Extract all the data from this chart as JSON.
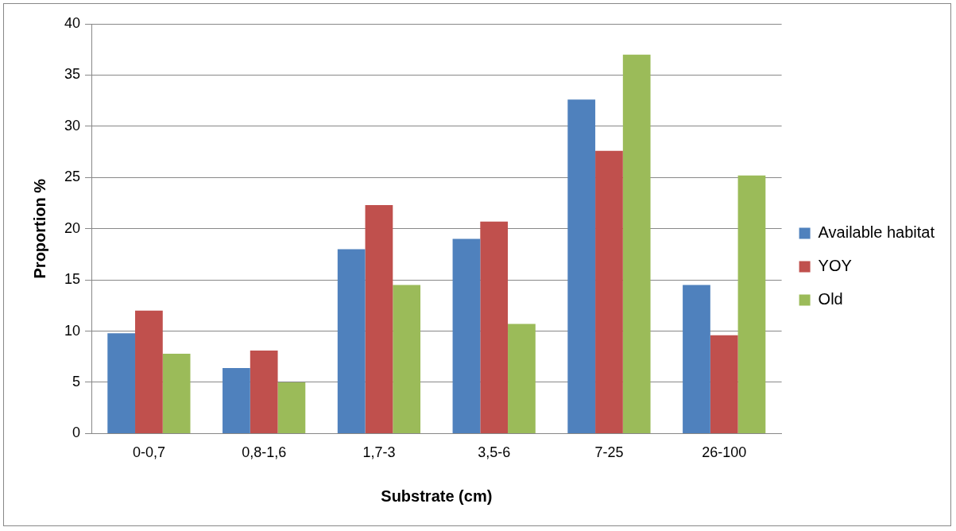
{
  "chart_data": {
    "type": "bar",
    "xlabel": "Substrate (cm)",
    "ylabel": "Proportion %",
    "categories": [
      "0-0,7",
      "0,8-1,6",
      "1,7-3",
      "3,5-6",
      "7-25",
      "26-100"
    ],
    "series": [
      {
        "name": "Available habitat",
        "color": "#4f81bd",
        "values": [
          9.8,
          6.4,
          18.0,
          19.0,
          32.6,
          14.5
        ]
      },
      {
        "name": "YOY",
        "color": "#c0504d",
        "values": [
          12.0,
          8.1,
          22.3,
          20.7,
          27.6,
          9.6
        ]
      },
      {
        "name": "Old",
        "color": "#9bbb59",
        "values": [
          7.8,
          5.0,
          14.5,
          10.7,
          37.0,
          25.2
        ]
      }
    ],
    "ylim": [
      0,
      40
    ],
    "yticks": [
      0,
      5,
      10,
      15,
      20,
      25,
      30,
      35,
      40
    ],
    "grid": "y",
    "legend": "right"
  }
}
